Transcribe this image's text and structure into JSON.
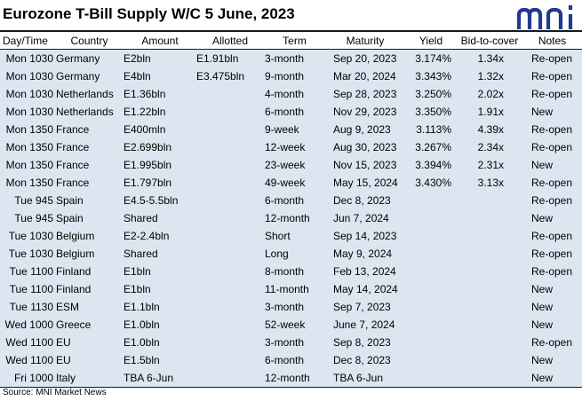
{
  "title": "Eurozone T-Bill Supply W/C 5 June, 2023",
  "logo_text": "mni",
  "brand_color": "#1f3a93",
  "row_color": "#dce6f1",
  "headers": [
    "Day/Time",
    "Country",
    "Amount",
    "Allotted",
    "Term",
    "Maturity",
    "Yield",
    "Bid-to-cover",
    "Notes"
  ],
  "rows": [
    [
      "Mon 1030",
      "Germany",
      "E2bln",
      "E1.91bln",
      "3-month",
      "Sep 20, 2023",
      "3.174%",
      "1.34x",
      "Re-open"
    ],
    [
      "Mon 1030",
      "Germany",
      "E4bln",
      "E3.475bln",
      "9-month",
      "Mar 20, 2024",
      "3.343%",
      "1.32x",
      "Re-open"
    ],
    [
      "Mon 1030",
      "Netherlands",
      "E1.36bln",
      "",
      "4-month",
      "Sep 28, 2023",
      "3.250%",
      "2.02x",
      "Re-open"
    ],
    [
      "Mon 1030",
      "Netherlands",
      "E1.22bln",
      "",
      "6-month",
      "Nov 29, 2023",
      "3.350%",
      "1.91x",
      "New"
    ],
    [
      "Mon 1350",
      "France",
      "E400mln",
      "",
      "9-week",
      "Aug 9, 2023",
      "3.113%",
      "4.39x",
      "Re-open"
    ],
    [
      "Mon 1350",
      "France",
      "E2.699bln",
      "",
      "12-week",
      "Aug 30, 2023",
      "3.267%",
      "2.34x",
      "Re-open"
    ],
    [
      "Mon 1350",
      "France",
      "E1.995bln",
      "",
      "23-week",
      "Nov 15, 2023",
      "3.394%",
      "2.31x",
      "New"
    ],
    [
      "Mon 1350",
      "France",
      "E1.797bln",
      "",
      "49-week",
      "May 15, 2024",
      "3.430%",
      "3.13x",
      "Re-open"
    ],
    [
      "Tue 945",
      "Spain",
      "E4.5-5.5bln",
      "",
      "6-month",
      "Dec 8, 2023",
      "",
      "",
      "Re-open"
    ],
    [
      "Tue 945",
      "Spain",
      "Shared",
      "",
      "12-month",
      "Jun 7, 2024",
      "",
      "",
      "New"
    ],
    [
      "Tue 1030",
      "Belgium",
      "E2-2.4bln",
      "",
      "Short",
      "Sep 14, 2023",
      "",
      "",
      "Re-open"
    ],
    [
      "Tue 1030",
      "Belgium",
      "Shared",
      "",
      "Long",
      "May 9, 2024",
      "",
      "",
      "Re-open"
    ],
    [
      "Tue 1100",
      "Finland",
      "E1bln",
      "",
      "8-month",
      "Feb 13, 2024",
      "",
      "",
      "Re-open"
    ],
    [
      "Tue 1100",
      "Finland",
      "E1bln",
      "",
      "11-month",
      "May 14, 2024",
      "",
      "",
      "New"
    ],
    [
      "Tue 1130",
      "ESM",
      "E1.1bln",
      "",
      "3-month",
      "Sep 7, 2023",
      "",
      "",
      "New"
    ],
    [
      "Wed 1000",
      "Greece",
      "E1.0bln",
      "",
      "52-week",
      "June 7, 2024",
      "",
      "",
      "New"
    ],
    [
      "Wed 1100",
      "EU",
      "E1.0bln",
      "",
      "3-month",
      "Sep 8, 2023",
      "",
      "",
      "Re-open"
    ],
    [
      "Wed 1100",
      "EU",
      "E1.5bln",
      "",
      "6-month",
      "Dec 8, 2023",
      "",
      "",
      "New"
    ],
    [
      "Fri 1000",
      "Italy",
      "TBA 6-Jun",
      "",
      "12-month",
      "TBA 6-Jun",
      "",
      "",
      "New"
    ]
  ],
  "source": "Source: MNI Market News"
}
